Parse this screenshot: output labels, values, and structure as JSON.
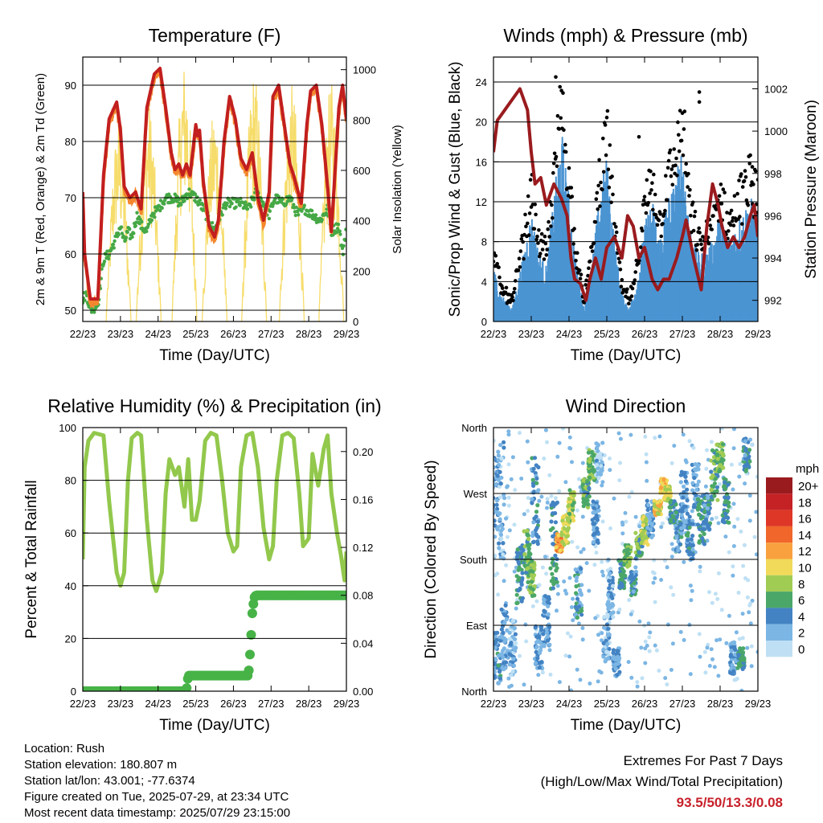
{
  "colors": {
    "temp_2m": "#c21f1f",
    "temp_9m": "#f4872e",
    "dewpoint": "#45a845",
    "solar": "#f6dc6a",
    "wind_sonic": "#4b94d2",
    "wind_gust": "#000000",
    "pressure": "#9a1b1e",
    "rh": "#92c84c",
    "precip": "#47b347"
  },
  "x_ticks": [
    "22/23",
    "23/23",
    "24/23",
    "25/23",
    "26/23",
    "27/23",
    "28/23",
    "29/23"
  ],
  "chart_data": [
    {
      "type": "line",
      "title": "Temperature (F)",
      "xlabel": "Time (Day/UTC)",
      "ylabel": "2m & 9m T (Red, Orange) & 2m Td (Green)",
      "y2label": "Solar Insolation (Yellow)",
      "ylim": [
        48,
        95
      ],
      "y_ticks": [
        "50",
        "60",
        "70",
        "80",
        "90"
      ],
      "y2lim": [
        0,
        1050
      ],
      "y2_ticks": [
        "0",
        "200",
        "400",
        "600",
        "800",
        "1000"
      ],
      "xlim": [
        0,
        7
      ],
      "series": [
        {
          "key": "temp",
          "x": [
            0,
            0.05,
            0.2,
            0.4,
            0.55,
            0.7,
            0.9,
            1.0,
            1.1,
            1.25,
            1.4,
            1.55,
            1.7,
            1.9,
            2.05,
            2.2,
            2.35,
            2.45,
            2.55,
            2.65,
            2.75,
            2.85,
            3.0,
            3.05,
            3.1,
            3.2,
            3.35,
            3.5,
            3.6,
            3.75,
            3.9,
            4.05,
            4.2,
            4.35,
            4.5,
            4.65,
            4.8,
            4.95,
            5.05,
            5.2,
            5.35,
            5.5,
            5.6,
            5.8,
            5.95,
            6.05,
            6.2,
            6.35,
            6.5,
            6.6,
            6.8,
            6.9,
            7.0
          ],
          "y": [
            71,
            60,
            52,
            52,
            74,
            84,
            87,
            82,
            72,
            70,
            71,
            68,
            86,
            92,
            93,
            86,
            78,
            75,
            76,
            74,
            76,
            74,
            83,
            81,
            82,
            73,
            65,
            63,
            66,
            80,
            88,
            84,
            77,
            75,
            78,
            70,
            66,
            71,
            88,
            90,
            83,
            76,
            74,
            69,
            83,
            89,
            90,
            83,
            72,
            64,
            86,
            90,
            84
          ]
        },
        {
          "key": "dew",
          "x": [
            0,
            0.1,
            0.2,
            0.4,
            0.55,
            0.7,
            0.9,
            1.0,
            1.1,
            1.2,
            1.3,
            1.45,
            1.55,
            1.7,
            1.85,
            2.0,
            2.2,
            2.4,
            2.6,
            2.8,
            3.0,
            3.2,
            3.35,
            3.5,
            3.6,
            3.8,
            4.0,
            4.2,
            4.4,
            4.6,
            4.8,
            4.95,
            5.1,
            5.3,
            5.5,
            5.7,
            5.9,
            6.1,
            6.3,
            6.5,
            6.6,
            6.8,
            6.9,
            7.0
          ],
          "y": [
            52,
            53,
            50,
            51,
            59,
            60,
            63,
            65,
            62,
            64,
            63,
            67,
            65,
            64,
            67,
            68,
            70,
            70,
            69,
            71,
            70,
            68,
            66,
            64,
            66,
            69,
            69,
            69,
            68,
            71,
            69,
            67,
            70,
            69,
            70,
            67,
            68,
            67,
            66,
            68,
            64,
            65,
            60,
            65
          ]
        },
        {
          "key": "solar",
          "peaks": [
            [
              0.95,
              800
            ],
            [
              1.75,
              870
            ],
            [
              2.7,
              1040
            ],
            [
              3.5,
              850
            ],
            [
              4.55,
              1000
            ],
            [
              5.55,
              940
            ],
            [
              6.6,
              950
            ]
          ]
        }
      ]
    },
    {
      "type": "scatter",
      "title": "Winds (mph) & Pressure (mb)",
      "xlabel": "Time (Day/UTC)",
      "ylabel": "Sonic/Prop Wind & Gust (Blue, Black)",
      "y2label": "Station Pressure (Maroon)",
      "ylim": [
        0,
        26.5
      ],
      "y_ticks": [
        "0",
        "4",
        "8",
        "12",
        "16",
        "20",
        "24"
      ],
      "y2lim": [
        991,
        1003.5
      ],
      "y2_ticks": [
        "992",
        "994",
        "996",
        "998",
        "1000",
        "1002"
      ],
      "xlim": [
        0,
        7
      ],
      "series": [
        {
          "key": "pressure",
          "x": [
            0,
            0.1,
            0.3,
            0.5,
            0.7,
            0.9,
            1.0,
            1.1,
            1.25,
            1.4,
            1.6,
            1.8,
            1.95,
            2.05,
            2.15,
            2.3,
            2.45,
            2.55,
            2.7,
            2.85,
            3.0,
            3.2,
            3.4,
            3.55,
            3.7,
            3.85,
            4.0,
            4.2,
            4.35,
            4.5,
            4.65,
            4.85,
            5.0,
            5.1,
            5.3,
            5.5,
            5.65,
            5.8,
            5.95,
            6.05,
            6.2,
            6.35,
            6.5,
            6.65,
            6.8,
            6.9,
            7.0
          ],
          "y": [
            999,
            1000.5,
            1001,
            1001.5,
            1002,
            1001,
            999,
            997.5,
            997.8,
            996.5,
            997.5,
            996.8,
            996,
            994,
            993,
            992.8,
            992,
            993,
            994,
            993,
            994.5,
            995,
            994,
            996,
            995.5,
            994,
            994.5,
            993,
            992.5,
            993,
            993,
            994,
            995,
            995.8,
            994,
            992.5,
            995.5,
            997.5,
            996.5,
            995.5,
            994.5,
            995,
            994.5,
            995,
            996,
            996.5,
            995
          ]
        },
        {
          "key": "wind",
          "levels": [
            [
              0.0,
              4
            ],
            [
              0.2,
              2
            ],
            [
              0.5,
              1
            ],
            [
              0.8,
              5
            ],
            [
              1.0,
              8
            ],
            [
              1.2,
              5
            ],
            [
              1.4,
              4
            ],
            [
              1.6,
              9
            ],
            [
              1.8,
              14
            ],
            [
              2.0,
              9
            ],
            [
              2.2,
              4
            ],
            [
              2.4,
              1
            ],
            [
              2.6,
              4
            ],
            [
              2.8,
              9
            ],
            [
              3.0,
              12
            ],
            [
              3.2,
              6
            ],
            [
              3.4,
              2
            ],
            [
              3.6,
              1
            ],
            [
              3.8,
              3
            ],
            [
              4.0,
              7
            ],
            [
              4.2,
              9
            ],
            [
              4.4,
              6
            ],
            [
              4.6,
              9
            ],
            [
              4.8,
              10
            ],
            [
              5.0,
              13
            ],
            [
              5.2,
              7
            ],
            [
              5.4,
              5
            ],
            [
              5.6,
              5
            ],
            [
              5.8,
              6
            ],
            [
              6.0,
              8
            ],
            [
              6.2,
              6
            ],
            [
              6.4,
              7
            ],
            [
              6.6,
              8
            ],
            [
              6.8,
              9
            ],
            [
              7.0,
              8
            ]
          ]
        }
      ]
    },
    {
      "type": "line",
      "title": "Relative Humidity (%) & Precipitation (in)",
      "xlabel": "Time (Day/UTC)",
      "ylabel": "Percent & Total Rainfall",
      "ylim": [
        0,
        100
      ],
      "y_ticks": [
        "0",
        "20",
        "40",
        "60",
        "80",
        "100"
      ],
      "y2lim": [
        0,
        0.22
      ],
      "y2_ticks": [
        "0.00",
        "0.04",
        "0.08",
        "0.12",
        "0.16",
        "0.20"
      ],
      "xlim": [
        0,
        7
      ],
      "series": [
        {
          "key": "rh",
          "x": [
            0,
            0.05,
            0.15,
            0.3,
            0.55,
            0.7,
            0.9,
            1.0,
            1.1,
            1.2,
            1.3,
            1.45,
            1.55,
            1.7,
            1.85,
            1.95,
            2.1,
            2.2,
            2.3,
            2.45,
            2.55,
            2.7,
            2.8,
            2.9,
            3.0,
            3.1,
            3.25,
            3.4,
            3.55,
            3.7,
            3.85,
            4.0,
            4.1,
            4.2,
            4.35,
            4.5,
            4.65,
            4.8,
            4.95,
            5.05,
            5.15,
            5.3,
            5.45,
            5.6,
            5.75,
            5.85,
            6.0,
            6.1,
            6.25,
            6.4,
            6.5,
            6.6,
            6.75,
            6.85,
            6.95,
            7.0
          ],
          "y": [
            50,
            85,
            95,
            98,
            97,
            72,
            45,
            40,
            45,
            80,
            96,
            98,
            97,
            65,
            42,
            38,
            45,
            75,
            88,
            82,
            85,
            70,
            88,
            65,
            65,
            72,
            95,
            98,
            97,
            80,
            60,
            53,
            55,
            85,
            97,
            98,
            85,
            62,
            50,
            55,
            80,
            97,
            98,
            96,
            75,
            55,
            58,
            90,
            78,
            92,
            97,
            75,
            60,
            52,
            42,
            53
          ]
        },
        {
          "key": "precip",
          "x": [
            0,
            2.75,
            2.8,
            4.4,
            4.45,
            4.5,
            4.55,
            4.6,
            7.0
          ],
          "y": [
            0,
            0,
            0.013,
            0.013,
            0.035,
            0.065,
            0.078,
            0.08,
            0.08
          ]
        }
      ]
    },
    {
      "type": "scatter",
      "title": "Wind Direction",
      "xlabel": "Time (Day/UTC)",
      "ylabel": "Direction (Colored By Speed)",
      "ylim": [
        0,
        360
      ],
      "y_ticks": [
        "North",
        "East",
        "South",
        "West",
        "North"
      ],
      "xlim": [
        0,
        7
      ],
      "legend": {
        "title": "mph",
        "labels": [
          "20+",
          "18",
          "16",
          "14",
          "12",
          "10",
          "8",
          "6",
          "4",
          "2",
          "0"
        ],
        "colors": [
          "#9a1b1e",
          "#c52226",
          "#de3727",
          "#f0662b",
          "#f9a03f",
          "#f1d95a",
          "#a1cc54",
          "#4ba768",
          "#4383c3",
          "#7cb6e4",
          "#bfe0f4"
        ]
      },
      "clusters": [
        [
          0.05,
          220,
          320,
          3
        ],
        [
          0.1,
          10,
          80,
          4
        ],
        [
          0.2,
          180,
          340,
          2
        ],
        [
          0.3,
          30,
          120,
          3
        ],
        [
          0.5,
          20,
          100,
          2
        ],
        [
          0.7,
          120,
          200,
          5
        ],
        [
          0.9,
          160,
          220,
          6
        ],
        [
          1.0,
          130,
          180,
          7
        ],
        [
          1.1,
          200,
          320,
          4
        ],
        [
          1.2,
          30,
          90,
          3
        ],
        [
          1.4,
          60,
          130,
          3
        ],
        [
          1.6,
          140,
          260,
          5
        ],
        [
          1.75,
          190,
          215,
          12
        ],
        [
          1.9,
          200,
          240,
          9
        ],
        [
          2.05,
          230,
          275,
          8
        ],
        [
          2.25,
          100,
          170,
          4
        ],
        [
          2.45,
          250,
          290,
          6
        ],
        [
          2.6,
          285,
          330,
          7
        ],
        [
          2.7,
          200,
          260,
          3
        ],
        [
          2.8,
          290,
          340,
          2
        ],
        [
          3.0,
          40,
          110,
          2
        ],
        [
          3.1,
          100,
          180,
          2
        ],
        [
          3.25,
          20,
          60,
          3
        ],
        [
          3.4,
          140,
          180,
          5
        ],
        [
          3.55,
          170,
          200,
          7
        ],
        [
          3.7,
          130,
          170,
          4
        ],
        [
          3.85,
          180,
          220,
          6
        ],
        [
          4.0,
          200,
          240,
          8
        ],
        [
          4.15,
          210,
          260,
          3
        ],
        [
          4.35,
          240,
          260,
          10
        ],
        [
          4.5,
          270,
          290,
          11
        ],
        [
          4.6,
          260,
          280,
          9
        ],
        [
          4.75,
          230,
          260,
          5
        ],
        [
          4.9,
          190,
          250,
          4
        ],
        [
          5.05,
          220,
          300,
          3
        ],
        [
          5.2,
          180,
          240,
          4
        ],
        [
          5.35,
          250,
          310,
          3
        ],
        [
          5.5,
          200,
          270,
          5
        ],
        [
          5.65,
          220,
          270,
          4
        ],
        [
          5.85,
          260,
          330,
          6
        ],
        [
          6.0,
          300,
          340,
          7
        ],
        [
          6.15,
          230,
          290,
          5
        ],
        [
          6.35,
          20,
          70,
          3
        ],
        [
          6.55,
          30,
          60,
          5
        ],
        [
          6.7,
          300,
          345,
          4
        ]
      ]
    }
  ],
  "info": {
    "location": "Location: Rush",
    "elevation": "Station elevation: 180.807 m",
    "latlon": "Station lat/lon: 43.001; -77.6374",
    "created": "Figure created on Tue, 2025-07-29, at 23:34 UTC",
    "recent": "Most recent data timestamp: 2025/07/29 23:15:00"
  },
  "extremes": {
    "title": "Extremes For Past 7 Days",
    "subtitle": "(High/Low/Max Wind/Total Precipitation)",
    "values": "93.5/50/13.3/0.08"
  }
}
